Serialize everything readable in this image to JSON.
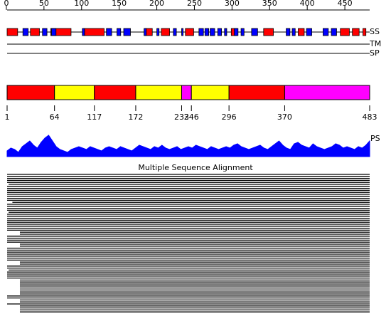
{
  "ruler": {
    "ticks": [
      0,
      50,
      100,
      150,
      200,
      250,
      300,
      350,
      400,
      450
    ],
    "range": [
      1,
      483
    ]
  },
  "tracks": {
    "ss_label": "SS",
    "tm_label": "TM",
    "sp_label": "SP",
    "helices": [
      [
        1,
        15
      ],
      [
        32,
        44
      ],
      [
        59,
        86
      ],
      [
        104,
        130
      ],
      [
        185,
        194
      ],
      [
        206,
        217
      ],
      [
        238,
        249
      ],
      [
        271,
        275
      ],
      [
        299,
        306
      ],
      [
        342,
        355
      ],
      [
        388,
        396
      ],
      [
        444,
        456
      ],
      [
        460,
        469
      ],
      [
        474,
        478
      ]
    ],
    "helix_color": "#ff0000",
    "strands": [
      [
        22,
        29
      ],
      [
        48,
        54
      ],
      [
        60,
        66
      ],
      [
        101,
        104
      ],
      [
        133,
        140
      ],
      [
        147,
        152
      ],
      [
        156,
        165
      ],
      [
        183,
        186
      ],
      [
        200,
        203
      ],
      [
        222,
        226
      ],
      [
        233,
        235
      ],
      [
        256,
        262
      ],
      [
        264,
        269
      ],
      [
        271,
        277
      ],
      [
        281,
        286
      ],
      [
        290,
        293
      ],
      [
        303,
        308
      ],
      [
        312,
        316
      ],
      [
        326,
        334
      ],
      [
        372,
        377
      ],
      [
        380,
        384
      ],
      [
        399,
        406
      ],
      [
        421,
        428
      ],
      [
        432,
        439
      ]
    ],
    "strand_color": "#0000ff"
  },
  "domains": {
    "boundaries": [
      1,
      64,
      117,
      172,
      233,
      246,
      296,
      370,
      483
    ],
    "colors": [
      "#ff0000",
      "#ffff00",
      "#ff0000",
      "#ffff00",
      "#ff00ff",
      "#ffff00",
      "#ff0000",
      "#ff00ff"
    ]
  },
  "ps": {
    "label": "PS",
    "color": "#0000ff",
    "ylim": [
      0,
      35
    ],
    "values": [
      8,
      12,
      10,
      6,
      14,
      18,
      22,
      16,
      12,
      20,
      26,
      30,
      22,
      14,
      10,
      8,
      6,
      10,
      12,
      14,
      12,
      10,
      14,
      12,
      10,
      8,
      12,
      14,
      12,
      10,
      14,
      12,
      10,
      8,
      12,
      16,
      14,
      12,
      10,
      14,
      12,
      16,
      12,
      10,
      12,
      14,
      10,
      12,
      14,
      12,
      16,
      14,
      12,
      10,
      14,
      12,
      10,
      12,
      14,
      12,
      16,
      18,
      14,
      12,
      10,
      12,
      14,
      16,
      12,
      10,
      14,
      18,
      22,
      16,
      12,
      10,
      18,
      20,
      16,
      14,
      12,
      18,
      14,
      12,
      10,
      12,
      14,
      18,
      16,
      12,
      14,
      12,
      10,
      14,
      12,
      16,
      22
    ]
  },
  "msa": {
    "title": "Multiple Sequence Alignment",
    "starts": [
      1,
      1,
      1,
      1,
      1,
      3,
      1,
      1,
      1,
      1,
      1,
      1,
      1,
      1,
      8,
      1,
      1,
      1,
      1,
      3,
      1,
      1,
      1,
      1,
      1,
      1,
      1,
      1,
      1,
      18,
      18,
      1,
      1,
      1,
      1,
      18,
      18,
      1,
      1,
      1,
      1,
      1,
      1,
      1,
      18,
      18,
      1,
      1,
      3,
      1,
      1,
      1,
      1,
      18,
      18,
      18,
      18,
      18,
      18,
      18,
      18,
      1,
      1,
      18,
      18,
      1,
      18,
      18,
      18,
      18
    ],
    "ends": [
      483,
      483,
      483,
      483,
      483,
      483,
      483,
      483,
      483,
      483,
      483,
      483,
      483,
      483,
      483,
      483,
      483,
      483,
      483,
      483,
      483,
      483,
      483,
      483,
      483,
      483,
      483,
      483,
      483,
      483,
      483,
      483,
      483,
      483,
      483,
      483,
      483,
      483,
      483,
      483,
      483,
      483,
      483,
      483,
      483,
      483,
      483,
      483,
      483,
      483,
      483,
      483,
      483,
      483,
      483,
      483,
      483,
      483,
      483,
      483,
      483,
      483,
      483,
      483,
      483,
      483,
      483,
      483,
      483,
      483
    ]
  }
}
